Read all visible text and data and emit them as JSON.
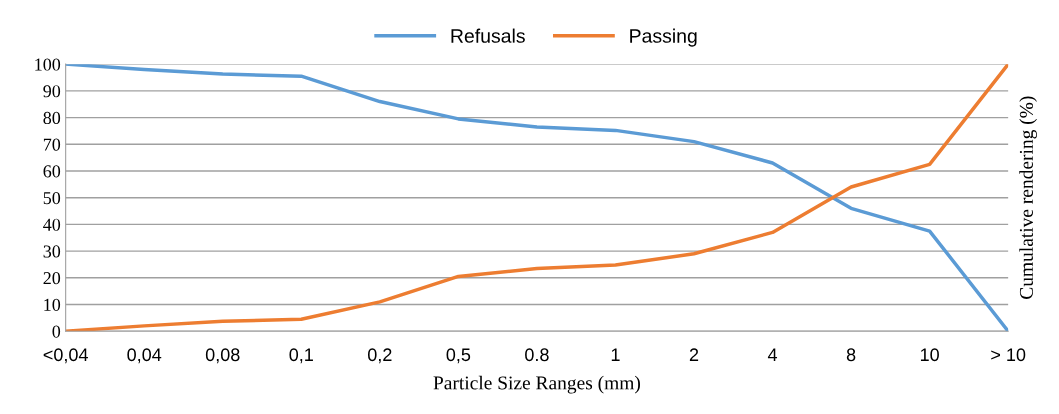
{
  "chart_data": {
    "type": "line",
    "xlabel": "Particle Size Ranges (mm)",
    "ylabel": "Cumulative rendering (%)",
    "categories": [
      "<0,04",
      "0,04",
      "0,08",
      "0,1",
      "0,2",
      "0,5",
      "0.8",
      "1",
      "2",
      "4",
      "8",
      "10",
      "> 10"
    ],
    "series": [
      {
        "name": "Refusals",
        "color": "#5b9bd5",
        "values": [
          100,
          98,
          96.3,
          95.5,
          86,
          79.5,
          76.5,
          75.2,
          71,
          63,
          46,
          37.5,
          0
        ]
      },
      {
        "name": "Passing",
        "color": "#ed7d31",
        "values": [
          0,
          2,
          3.7,
          4.5,
          11,
          20.5,
          23.5,
          24.8,
          29,
          37,
          54,
          62.5,
          100
        ]
      }
    ],
    "ylim": [
      0,
      100
    ],
    "yticks": [
      0,
      10,
      20,
      30,
      40,
      50,
      60,
      70,
      80,
      90,
      100
    ],
    "grid": "y",
    "legend": "top",
    "marker": "none",
    "line_style": "solid"
  }
}
